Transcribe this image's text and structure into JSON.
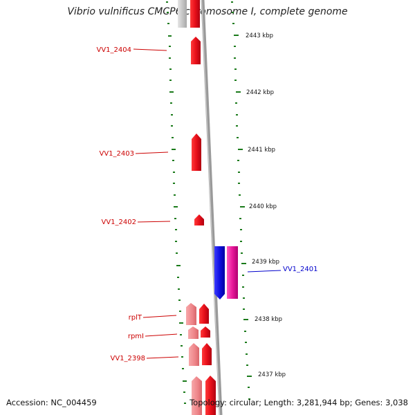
{
  "title": "Vibrio vulnificus CMCP6 chromosome I, complete genome",
  "accession": "Accession: NC_004459",
  "summary": "Topology: circular; Length: 3,281,944 bp; Genes: 3,038",
  "colors": {
    "plus_strand_gene": "#e8202a",
    "plus_strand_light": "#f08a8c",
    "minus_strand_gene": "#1414e0",
    "minus_strand_rna": "#e8189a",
    "backbone": "#8c8c8c",
    "ticks": "#1a7a1a",
    "label_red": "#cc0000",
    "label_blue": "#0000cc"
  },
  "kbp_labels": [
    "2443 kbp",
    "2442 kbp",
    "2441 kbp",
    "2440 kbp",
    "2439 kbp",
    "2438 kbp",
    "2437 kbp"
  ],
  "gene_labels": [
    {
      "text": "VV1_2404",
      "color": "red"
    },
    {
      "text": "VV1_2403",
      "color": "red"
    },
    {
      "text": "VV1_2402",
      "color": "red"
    },
    {
      "text": "VV1_2401",
      "color": "blue"
    },
    {
      "text": "rplT",
      "color": "red"
    },
    {
      "text": "rpmI",
      "color": "red"
    },
    {
      "text": "VV1_2398",
      "color": "red"
    }
  ]
}
